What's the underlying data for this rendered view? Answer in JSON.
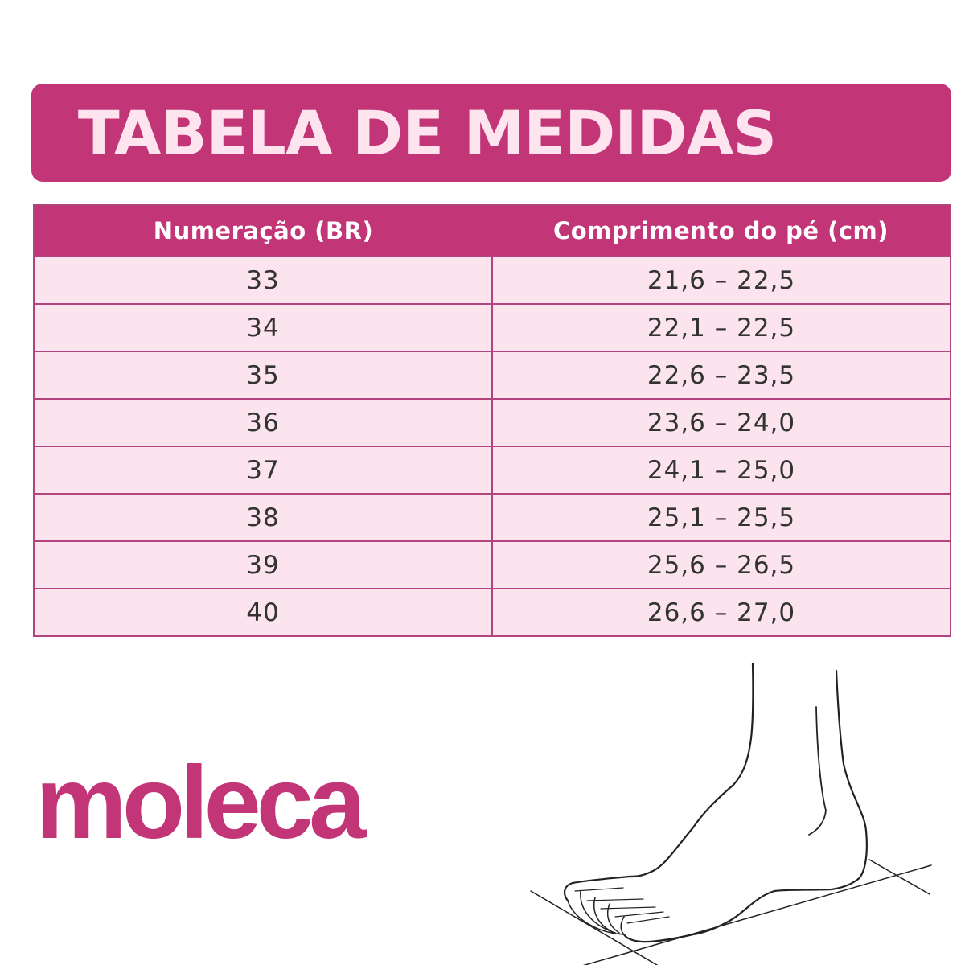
{
  "title": "TABELA DE MEDIDAS",
  "table": {
    "headers": [
      "Numeração (BR)",
      "Comprimento do pé (cm)"
    ],
    "rows": [
      [
        "33",
        "21,6 – 22,5"
      ],
      [
        "34",
        "22,1 – 22,5"
      ],
      [
        "35",
        "22,6 – 23,5"
      ],
      [
        "36",
        "23,6 – 24,0"
      ],
      [
        "37",
        "24,1 – 25,0"
      ],
      [
        "38",
        "25,1 – 25,5"
      ],
      [
        "39",
        "25,6 – 26,5"
      ],
      [
        "40",
        "26,6 – 27,0"
      ]
    ]
  },
  "logo": "moleca",
  "colors": {
    "brand": "#c23577",
    "row_bg": "#fce4ee"
  },
  "illustration": "foot-measurement-icon"
}
